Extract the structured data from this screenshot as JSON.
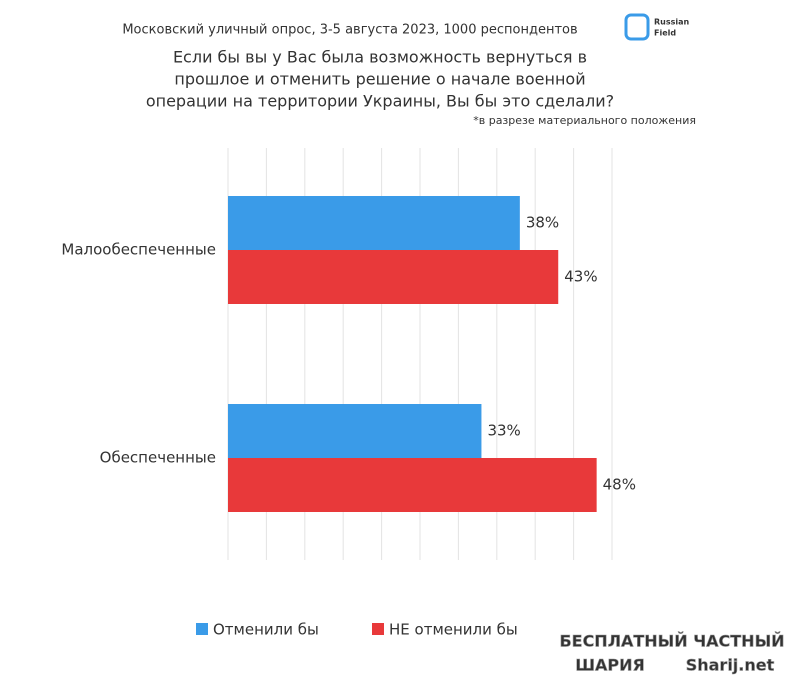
{
  "chart_data": {
    "type": "hbar",
    "header": "Московский уличный опрос, 3-5 августа 2023, 1000 респондентов",
    "title": [
      "Если бы вы у Вас была возможность вернуться в",
      "прошлое и отменить решение о начале военной",
      "операции на территории Украины, Вы бы это сделали?"
    ],
    "note": "*в разрезе материального положения",
    "logo": [
      "Russian",
      "Field"
    ],
    "watermark": [
      "БЕСПЛАТНЫЙ ЧАСТНЫЙ",
      "ШАРИЯ",
      "Sharij.net"
    ],
    "categories": [
      "Малообеспеченные",
      "Обеспеченные"
    ],
    "series": [
      {
        "name": "Отменили бы",
        "color": "#3a9be8",
        "values": [
          38,
          33
        ],
        "value_labels": [
          "38%",
          "33%"
        ]
      },
      {
        "name": "НЕ отменили бы",
        "color": "#e8393a",
        "values": [
          43,
          48
        ],
        "value_labels": [
          "43%",
          "48%"
        ]
      }
    ],
    "xlim": [
      0,
      50
    ],
    "xticks": [
      0,
      5,
      10,
      15,
      20,
      25,
      30,
      35,
      40,
      45,
      50
    ],
    "grid": true,
    "legend": "bottom"
  }
}
